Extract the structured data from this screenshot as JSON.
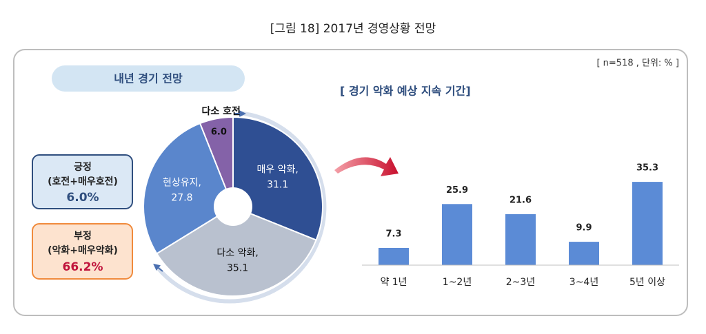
{
  "title": "[그림 18] 2017년 경영상황 전망",
  "note": "[ n=518 , 단위: % ]",
  "summary_boxes": [
    {
      "label": "긍정",
      "detail": "(호전+매우호전)",
      "value_label": "6.0%"
    },
    {
      "label": "부정",
      "detail": "(악화+매우악화)",
      "value_label": "66.2%"
    }
  ],
  "chart_data": [
    {
      "type": "pie",
      "title": "내년 경기 전망",
      "categories": [
        "매우 악화,",
        "다소 악화,",
        "현상유지,",
        "다소 호전"
      ],
      "values": [
        31.1,
        35.1,
        27.8,
        6.0
      ],
      "value_labels": [
        "31.1",
        "35.1",
        "27.8",
        "6.0"
      ],
      "colors": [
        "#2f4f93",
        "#b9c1cf",
        "#5a86cc",
        "#8462a8"
      ]
    },
    {
      "type": "bar",
      "title": "[ 경기 악화 예상 지속 기간]",
      "categories": [
        "약 1년",
        "1~2년",
        "2~3년",
        "3~4년",
        "5년 이상"
      ],
      "values": [
        7.3,
        25.9,
        21.6,
        9.9,
        35.3
      ],
      "color": "#5b8bd6",
      "ylim": [
        0,
        40
      ]
    }
  ]
}
